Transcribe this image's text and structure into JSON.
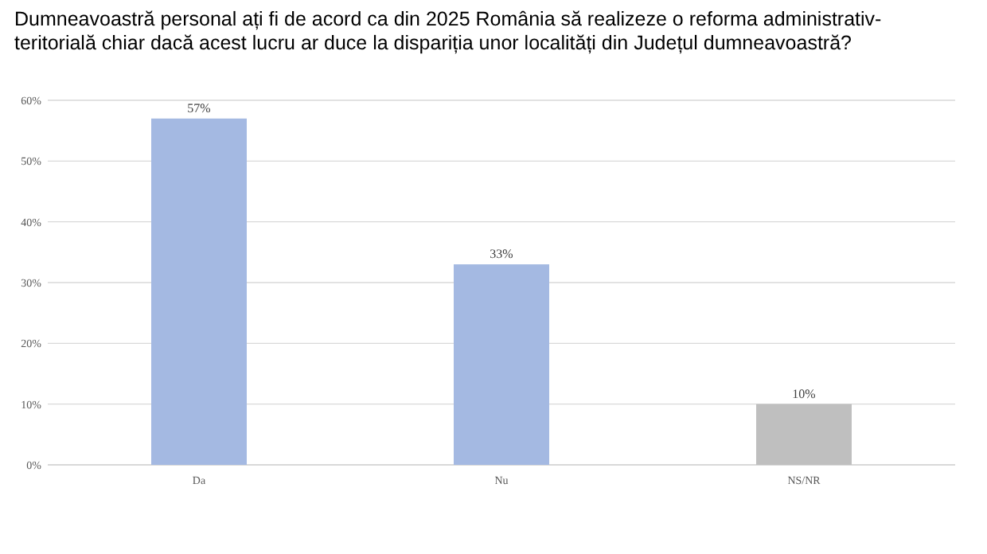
{
  "chart_data": {
    "type": "bar",
    "title": "Dumneavoastră personal ați fi de acord ca din 2025 România să realizeze o reforma administrativ- teritorială chiar dacă acest lucru ar duce la dispariția unor localități din Județul dumneavoastră?",
    "categories": [
      "Da",
      "Nu",
      "NS/NR"
    ],
    "values": [
      57,
      33,
      10
    ],
    "colors": [
      "#a4b9e2",
      "#a4b9e2",
      "#bfbfbf"
    ],
    "value_labels": [
      "57%",
      "33%",
      "10%"
    ],
    "ylim": [
      0,
      60
    ],
    "yticks": [
      {
        "value": 0,
        "label": "0%"
      },
      {
        "value": 10,
        "label": "10%"
      },
      {
        "value": 20,
        "label": "20%"
      },
      {
        "value": 30,
        "label": "30%"
      },
      {
        "value": 40,
        "label": "40%"
      },
      {
        "value": 50,
        "label": "50%"
      },
      {
        "value": 60,
        "label": "60%"
      }
    ],
    "grid": "y"
  }
}
